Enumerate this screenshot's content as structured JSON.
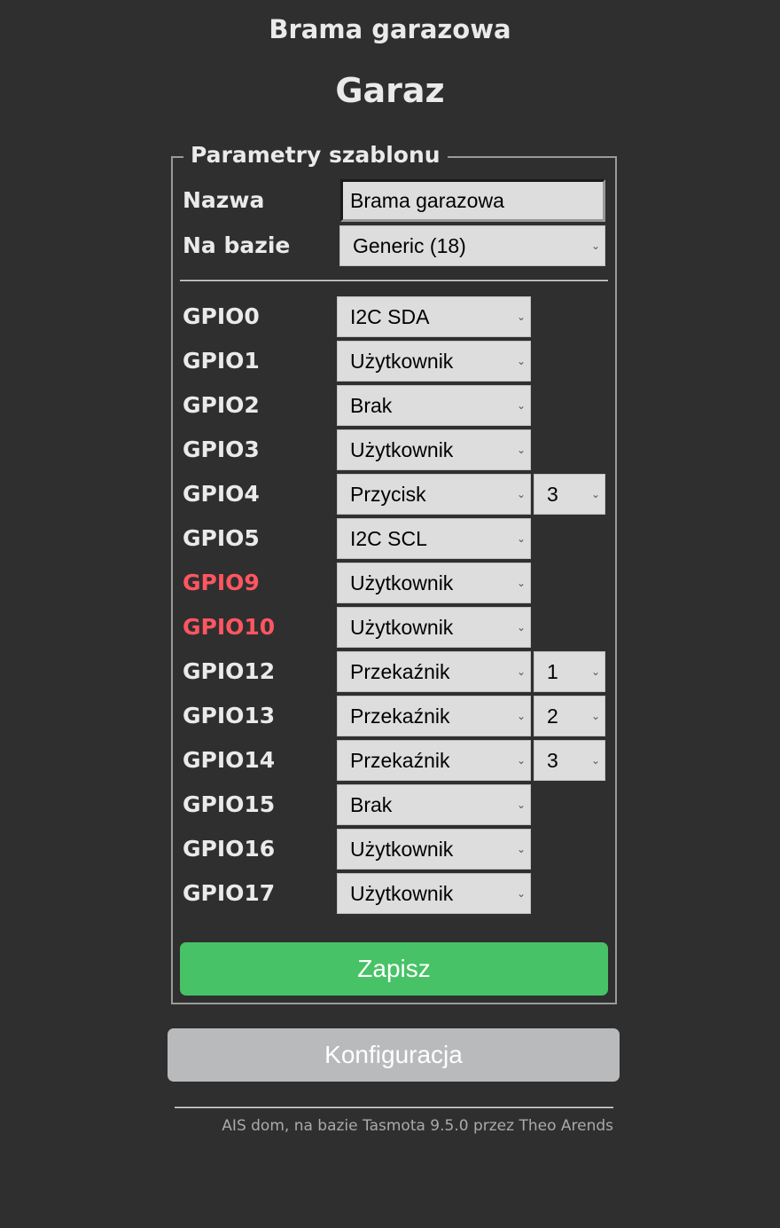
{
  "header": {
    "device_name": "Brama garazowa",
    "title": "Garaz"
  },
  "form": {
    "legend": "Parametry szablonu",
    "name_label": "Nazwa",
    "name_value": "Brama garazowa",
    "base_label": "Na bazie",
    "base_value": "Generic (18)",
    "gpios": [
      {
        "label": "GPIO0",
        "value": "I2C SDA",
        "index": null,
        "warn": false
      },
      {
        "label": "GPIO1",
        "value": "Użytkownik",
        "index": null,
        "warn": false
      },
      {
        "label": "GPIO2",
        "value": "Brak",
        "index": null,
        "warn": false
      },
      {
        "label": "GPIO3",
        "value": "Użytkownik",
        "index": null,
        "warn": false
      },
      {
        "label": "GPIO4",
        "value": "Przycisk",
        "index": "3",
        "warn": false
      },
      {
        "label": "GPIO5",
        "value": "I2C SCL",
        "index": null,
        "warn": false
      },
      {
        "label": "GPIO9",
        "value": "Użytkownik",
        "index": null,
        "warn": true
      },
      {
        "label": "GPIO10",
        "value": "Użytkownik",
        "index": null,
        "warn": true
      },
      {
        "label": "GPIO12",
        "value": "Przekaźnik",
        "index": "1",
        "warn": false
      },
      {
        "label": "GPIO13",
        "value": "Przekaźnik",
        "index": "2",
        "warn": false
      },
      {
        "label": "GPIO14",
        "value": "Przekaźnik",
        "index": "3",
        "warn": false
      },
      {
        "label": "GPIO15",
        "value": "Brak",
        "index": null,
        "warn": false
      },
      {
        "label": "GPIO16",
        "value": "Użytkownik",
        "index": null,
        "warn": false
      },
      {
        "label": "GPIO17",
        "value": "Użytkownik",
        "index": null,
        "warn": false
      }
    ],
    "save_label": "Zapisz"
  },
  "config_label": "Konfiguracja",
  "footer": "AIS dom, na bazie Tasmota 9.5.0 przez Theo Arends",
  "colors": {
    "background": "#2f2f2f",
    "save": "#47c266",
    "config": "#b9babb",
    "warning": "#ff5661"
  }
}
